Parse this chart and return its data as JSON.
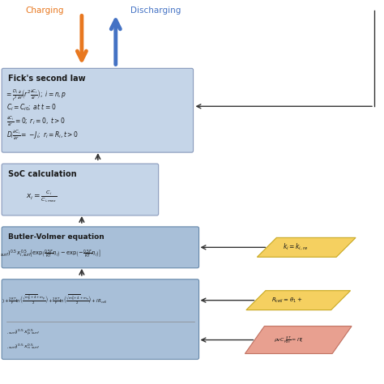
{
  "bg_color": "#ffffff",
  "box_blue_light": "#c5d5e8",
  "box_blue_medium": "#a8bfd8",
  "box_yellow": "#f5d060",
  "box_red": "#e8a090",
  "arrow_orange": "#e87820",
  "arrow_blue": "#4472c4",
  "arrow_dark": "#333333",
  "text_dark": "#1a1a1a",
  "ec_blue": "#8899bb",
  "ec_blue2": "#6688aa",
  "ec_yellow": "#c8a820",
  "ec_red": "#c07060",
  "charging_text": "Charging",
  "discharging_text": "Discharging",
  "ficks_title": "Fick's second law",
  "soc_title": "SoC calculation",
  "bv_title": "Butler-Volmer equation"
}
